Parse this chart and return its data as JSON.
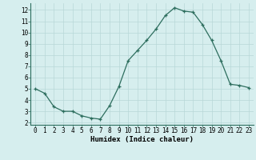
{
  "x": [
    0,
    1,
    2,
    3,
    4,
    5,
    6,
    7,
    8,
    9,
    10,
    11,
    12,
    13,
    14,
    15,
    16,
    17,
    18,
    19,
    20,
    21,
    22,
    23
  ],
  "y": [
    5.0,
    4.6,
    3.4,
    3.0,
    3.0,
    2.6,
    2.4,
    2.3,
    3.5,
    5.2,
    7.5,
    8.4,
    9.3,
    10.3,
    11.5,
    12.2,
    11.9,
    11.8,
    10.7,
    9.3,
    7.5,
    5.4,
    5.3,
    5.1
  ],
  "xlabel": "Humidex (Indice chaleur)",
  "line_color": "#2d6e5e",
  "marker": "+",
  "bg_color": "#d6eeee",
  "grid_color": "#b8d8d8",
  "xlim": [
    -0.5,
    23.5
  ],
  "ylim": [
    1.8,
    12.6
  ],
  "yticks": [
    2,
    3,
    4,
    5,
    6,
    7,
    8,
    9,
    10,
    11,
    12
  ],
  "xticks": [
    0,
    1,
    2,
    3,
    4,
    5,
    6,
    7,
    8,
    9,
    10,
    11,
    12,
    13,
    14,
    15,
    16,
    17,
    18,
    19,
    20,
    21,
    22,
    23
  ],
  "tick_fontsize": 5.5,
  "label_fontsize": 6.5
}
